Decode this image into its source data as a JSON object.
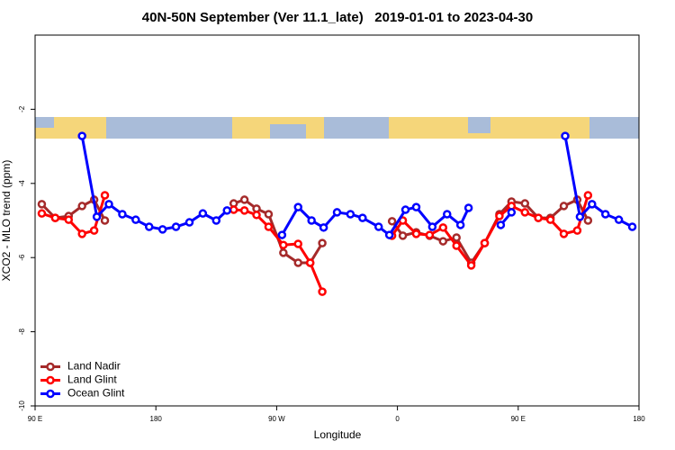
{
  "chart_data": {
    "type": "line",
    "title": "40N-50N September (Ver 11.1_late)   2019-01-01 to 2023-04-30",
    "x_label": "Longitude",
    "y_label": "XCO2 - MLO trend (ppm)",
    "xlim": [
      90,
      540
    ],
    "ylim": [
      -10,
      0
    ],
    "xticks": [
      {
        "value": 90,
        "label": "90 E"
      },
      180,
      {
        "value": 270,
        "label": "90 W"
      },
      {
        "value": 360,
        "label": "0"
      },
      {
        "value": 450,
        "label": "90 E"
      },
      {
        "value": 540,
        "label": "180"
      }
    ],
    "yticks": [
      -2,
      -4,
      -6,
      -8,
      -10
    ],
    "legend": "bottom-left",
    "series": [
      {
        "name": "Land Nadir",
        "color": "#a52a2a",
        "x": [
          95,
          105,
          115,
          125,
          134,
          142,
          null,
          238,
          246,
          255,
          264,
          275,
          286,
          295,
          304,
          null,
          356,
          364,
          374,
          384,
          394,
          404,
          415,
          425,
          436,
          445,
          455,
          465,
          474,
          484,
          494,
          502
        ],
        "values": [
          -4.56,
          -4.93,
          -4.88,
          -4.61,
          -4.44,
          -5.0,
          null,
          -4.54,
          -4.44,
          -4.68,
          -4.83,
          -5.87,
          -6.14,
          -6.14,
          -5.61,
          null,
          -5.02,
          -5.41,
          -5.32,
          -5.41,
          -5.56,
          -5.46,
          -6.14,
          -5.61,
          -4.83,
          -4.49,
          -4.54,
          -4.93,
          -4.93,
          -4.61,
          -4.44,
          -5.0
        ]
      },
      {
        "name": "Land Glint",
        "color": "#ff0000",
        "x": [
          95,
          105,
          115,
          125,
          134,
          142,
          null,
          238,
          246,
          255,
          264,
          275,
          286,
          295,
          304,
          null,
          356,
          364,
          374,
          384,
          394,
          404,
          415,
          425,
          436,
          445,
          455,
          465,
          474,
          484,
          494,
          502
        ],
        "values": [
          -4.81,
          -4.93,
          -4.98,
          -5.36,
          -5.27,
          -4.32,
          null,
          -4.71,
          -4.73,
          -4.85,
          -5.17,
          -5.66,
          -5.63,
          -6.14,
          -6.92,
          null,
          -5.41,
          -5.0,
          -5.36,
          -5.39,
          -5.19,
          -5.68,
          -6.21,
          -5.61,
          -4.88,
          -4.61,
          -4.78,
          -4.93,
          -4.98,
          -5.36,
          -5.27,
          -4.32
        ]
      },
      {
        "name": "Ocean Glint",
        "color": "#0000ff",
        "x": [
          125,
          136,
          145,
          155,
          165,
          175,
          185,
          195,
          205,
          215,
          225,
          233,
          null,
          274,
          286,
          296,
          305,
          315,
          325,
          334,
          346,
          354,
          366,
          374,
          386,
          397,
          407,
          413,
          null,
          437,
          445,
          null,
          485,
          496,
          505,
          515,
          525,
          535
        ],
        "values": [
          -2.72,
          -4.9,
          -4.56,
          -4.83,
          -4.98,
          -5.17,
          -5.24,
          -5.17,
          -5.05,
          -4.81,
          -5.0,
          -4.73,
          null,
          -5.39,
          -4.64,
          -5.0,
          -5.19,
          -4.78,
          -4.83,
          -4.93,
          -5.17,
          -5.39,
          -4.71,
          -4.64,
          -5.17,
          -4.83,
          -5.12,
          -4.66,
          null,
          -5.12,
          -4.78,
          null,
          -2.72,
          -4.9,
          -4.56,
          -4.83,
          -4.98,
          -5.17
        ]
      }
    ]
  }
}
